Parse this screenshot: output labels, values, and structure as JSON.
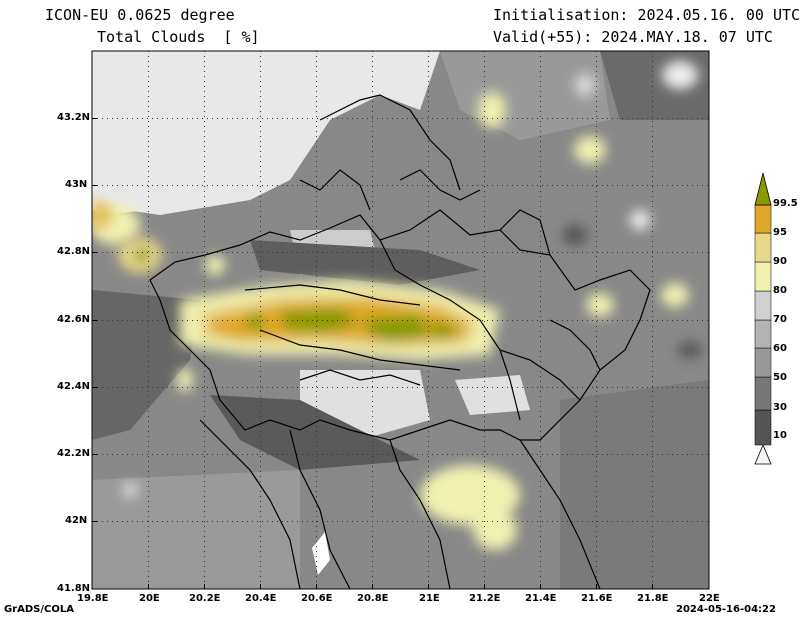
{
  "header": {
    "model": "ICON-EU 0.0625 degree",
    "variable": "Total Clouds  [ %]",
    "init": "Initialisation: 2024.05.16. 00 UTC",
    "valid": "Valid(+55): 2024.MAY.18. 07 UTC"
  },
  "axes": {
    "lat_labels": [
      "43.2N",
      "43N",
      "42.8N",
      "42.6N",
      "42.4N",
      "42.2N",
      "42N",
      "41.8N"
    ],
    "lon_labels": [
      "19.8E",
      "20E",
      "20.2E",
      "20.4E",
      "20.6E",
      "20.8E",
      "21E",
      "21.2E",
      "21.4E",
      "21.6E",
      "21.8E",
      "22E"
    ],
    "lat_range": [
      41.8,
      43.4
    ],
    "lon_range": [
      19.8,
      22.0
    ]
  },
  "colorbar": {
    "levels": [
      "10",
      "30",
      "50",
      "60",
      "70",
      "80",
      "90",
      "95",
      "99.5"
    ],
    "colors": [
      "#f5f5f5",
      "#555555",
      "#777777",
      "#999999",
      "#b3b3b3",
      "#d0d0d0",
      "#f0f0b0",
      "#e8d88a",
      "#e5c060",
      "#e0a828",
      "#8a9a00"
    ]
  },
  "footer": {
    "left": "GrADS/COLA",
    "right": "2024-05-16-04:22"
  }
}
